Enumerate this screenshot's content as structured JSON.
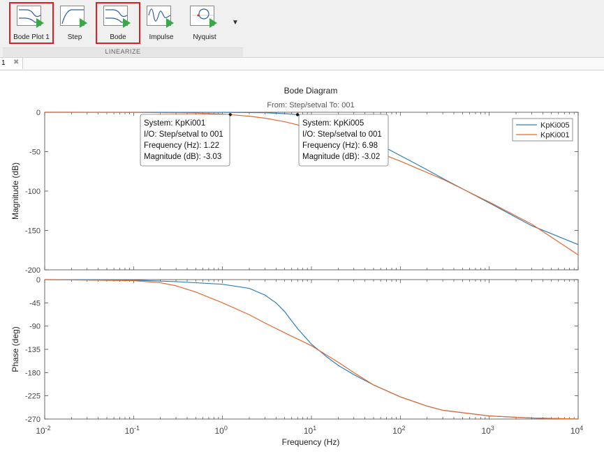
{
  "toolbar": {
    "buttons": [
      {
        "label": "Bode Plot 1",
        "icon": "bode-plot-icon",
        "highlighted": true
      },
      {
        "label": "Step",
        "icon": "step-plot-icon",
        "highlighted": false
      },
      {
        "label": "Bode",
        "icon": "bode-plot-icon",
        "highlighted": true
      },
      {
        "label": "Impulse",
        "icon": "impulse-plot-icon",
        "highlighted": false
      },
      {
        "label": "Nyquist",
        "icon": "nyquist-plot-icon",
        "highlighted": false
      }
    ],
    "section_label": "LINEARIZE",
    "highlight_color": "#e02020"
  },
  "tab": {
    "label": "1",
    "close_glyph": "✖"
  },
  "chart_data": {
    "type": "line",
    "title": "Bode Diagram",
    "subtitle": "From: Step/setval  To: 001",
    "xlabel": "Frequency  (Hz)",
    "xscale": "log",
    "xlim": [
      0.01,
      10000
    ],
    "xticks": [
      0.01,
      0.1,
      1,
      10,
      100,
      1000,
      10000
    ],
    "xtick_labels": [
      {
        "base": "10",
        "exp": "-2"
      },
      {
        "base": "10",
        "exp": "-1"
      },
      {
        "base": "10",
        "exp": "0"
      },
      {
        "base": "10",
        "exp": "1"
      },
      {
        "base": "10",
        "exp": "2"
      },
      {
        "base": "10",
        "exp": "3"
      },
      {
        "base": "10",
        "exp": "4"
      }
    ],
    "legend_placement": "top-right",
    "grid": false,
    "series": [
      {
        "name": "KpKi005",
        "color": "#2f7eb8"
      },
      {
        "name": "KpKi001",
        "color": "#e06a30"
      }
    ],
    "magnitude": {
      "ylabel": "Magnitude (dB)",
      "ylim": [
        -200,
        0
      ],
      "yticks": [
        0,
        -50,
        -100,
        -150,
        -200
      ],
      "series": [
        {
          "name": "KpKi005",
          "points": [
            [
              0.01,
              0
            ],
            [
              0.1,
              0
            ],
            [
              1,
              -0.1
            ],
            [
              3,
              -0.6
            ],
            [
              5,
              -1.8
            ],
            [
              6.98,
              -3.02
            ],
            [
              10,
              -6.5
            ],
            [
              15,
              -12
            ],
            [
              20,
              -17
            ],
            [
              30,
              -25
            ],
            [
              50,
              -37
            ],
            [
              100,
              -55
            ],
            [
              200,
              -73
            ],
            [
              300,
              -84
            ],
            [
              1000,
              -115
            ],
            [
              3000,
              -144
            ],
            [
              10000,
              -168
            ]
          ]
        },
        {
          "name": "KpKi001",
          "points": [
            [
              0.01,
              0
            ],
            [
              0.1,
              -0.1
            ],
            [
              0.5,
              -1
            ],
            [
              1,
              -2.3
            ],
            [
              1.22,
              -3.03
            ],
            [
              2,
              -5
            ],
            [
              3,
              -7.5
            ],
            [
              5,
              -12
            ],
            [
              7,
              -16
            ],
            [
              10,
              -22
            ],
            [
              20,
              -33
            ],
            [
              30,
              -40
            ],
            [
              50,
              -49
            ],
            [
              100,
              -62
            ],
            [
              300,
              -85
            ],
            [
              1000,
              -114
            ],
            [
              3000,
              -142
            ],
            [
              10000,
              -181
            ]
          ]
        }
      ],
      "annotations": [
        {
          "system": "System: KpKi001",
          "io": "I/O: Step/setval to 001",
          "frequency": "Frequency (Hz): 1.22",
          "magnitude": "Magnitude (dB): -3.03",
          "x": 1.22,
          "y": -3.03
        },
        {
          "system": "System: KpKi005",
          "io": "I/O: Step/setval to 001",
          "frequency": "Frequency (Hz): 6.98",
          "magnitude": "Magnitude (dB): -3.02",
          "x": 6.98,
          "y": -3.02
        }
      ]
    },
    "phase": {
      "ylabel": "Phase (deg)",
      "ylim": [
        -270,
        0
      ],
      "yticks": [
        0,
        -45,
        -90,
        -135,
        -180,
        -225,
        -270
      ],
      "series": [
        {
          "name": "KpKi005",
          "points": [
            [
              0.01,
              0
            ],
            [
              0.1,
              -1
            ],
            [
              0.3,
              -4
            ],
            [
              1,
              -9
            ],
            [
              2,
              -17
            ],
            [
              3,
              -30
            ],
            [
              4,
              -45
            ],
            [
              5,
              -62
            ],
            [
              6,
              -80
            ],
            [
              7,
              -95
            ],
            [
              10,
              -125
            ],
            [
              15,
              -150
            ],
            [
              20,
              -166
            ],
            [
              30,
              -184
            ],
            [
              50,
              -204
            ],
            [
              100,
              -227
            ],
            [
              200,
              -245
            ],
            [
              300,
              -253
            ],
            [
              1000,
              -264
            ],
            [
              3000,
              -268
            ],
            [
              10000,
              -270
            ]
          ]
        },
        {
          "name": "KpKi001",
          "points": [
            [
              0.01,
              0
            ],
            [
              0.1,
              -2
            ],
            [
              0.2,
              -6
            ],
            [
              0.3,
              -12
            ],
            [
              0.5,
              -24
            ],
            [
              1,
              -45
            ],
            [
              2,
              -68
            ],
            [
              3,
              -84
            ],
            [
              5,
              -103
            ],
            [
              10,
              -128
            ],
            [
              20,
              -160
            ],
            [
              30,
              -180
            ],
            [
              50,
              -204
            ],
            [
              100,
              -227
            ],
            [
              200,
              -245
            ],
            [
              300,
              -253
            ],
            [
              1000,
              -264
            ],
            [
              3000,
              -268
            ],
            [
              10000,
              -270
            ]
          ]
        }
      ]
    }
  }
}
